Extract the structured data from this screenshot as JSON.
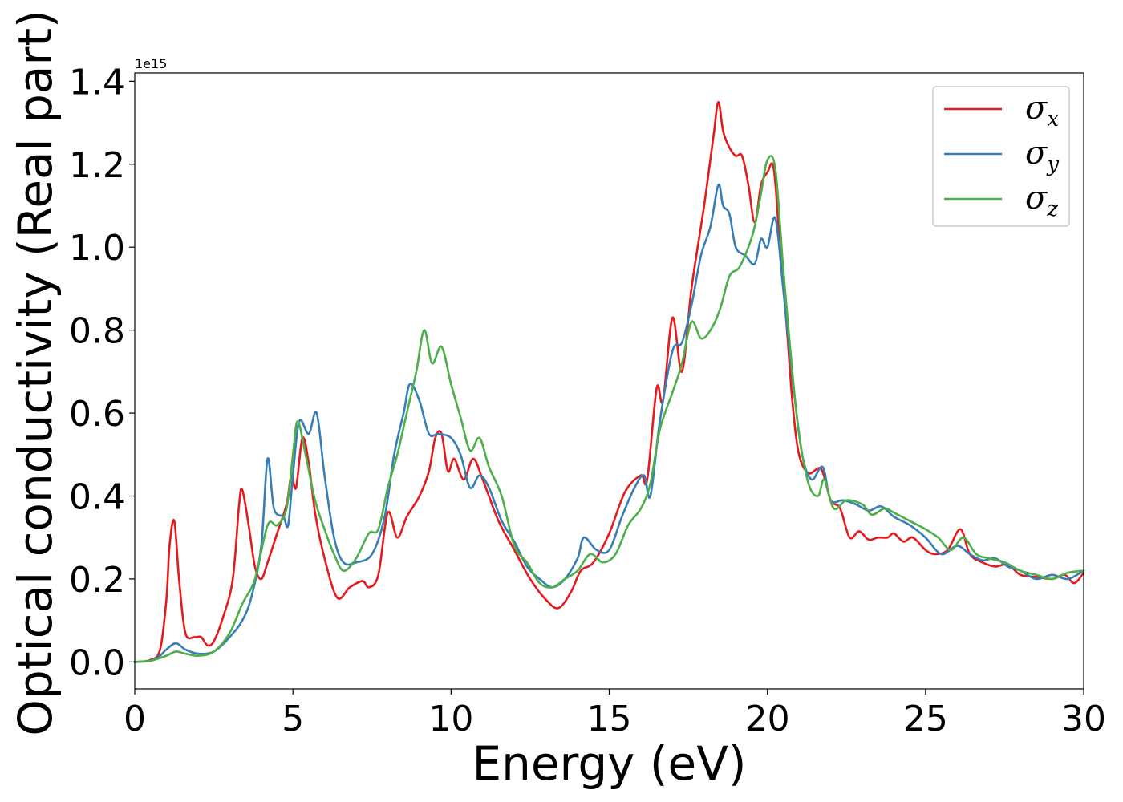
{
  "chart_data": {
    "type": "line",
    "xlabel": "Energy (eV)",
    "ylabel": "Optical conductivity (Real part)",
    "y_offset_text": "1e15",
    "xlim": [
      0,
      30
    ],
    "ylim": [
      -0.065,
      1.42
    ],
    "xticks": [
      0,
      5,
      10,
      15,
      20,
      25,
      30
    ],
    "yticks": [
      0.0,
      0.2,
      0.4,
      0.6,
      0.8,
      1.0,
      1.2,
      1.4
    ],
    "xtick_labels": [
      "0",
      "5",
      "10",
      "15",
      "20",
      "25",
      "30"
    ],
    "ytick_labels": [
      "0.0",
      "0.2",
      "0.4",
      "0.6",
      "0.8",
      "1.0",
      "1.2",
      "1.4"
    ],
    "grid": false,
    "legend_position": "top-right",
    "series": [
      {
        "name": "σx",
        "symbol": "σ",
        "subscript": "x",
        "color": "#e41a1c",
        "points": [
          [
            0,
            0
          ],
          [
            0.5,
            0.005
          ],
          [
            0.8,
            0.03
          ],
          [
            1.0,
            0.15
          ],
          [
            1.1,
            0.28
          ],
          [
            1.25,
            0.34
          ],
          [
            1.4,
            0.2
          ],
          [
            1.6,
            0.07
          ],
          [
            1.9,
            0.06
          ],
          [
            2.1,
            0.06
          ],
          [
            2.3,
            0.04
          ],
          [
            2.5,
            0.05
          ],
          [
            2.8,
            0.11
          ],
          [
            3.1,
            0.2
          ],
          [
            3.3,
            0.38
          ],
          [
            3.4,
            0.415
          ],
          [
            3.6,
            0.33
          ],
          [
            3.8,
            0.23
          ],
          [
            4.0,
            0.2
          ],
          [
            4.2,
            0.24
          ],
          [
            4.5,
            0.31
          ],
          [
            4.8,
            0.38
          ],
          [
            4.95,
            0.45
          ],
          [
            5.1,
            0.42
          ],
          [
            5.3,
            0.54
          ],
          [
            5.5,
            0.48
          ],
          [
            5.7,
            0.36
          ],
          [
            6.0,
            0.25
          ],
          [
            6.4,
            0.155
          ],
          [
            6.8,
            0.18
          ],
          [
            7.2,
            0.195
          ],
          [
            7.4,
            0.18
          ],
          [
            7.7,
            0.21
          ],
          [
            8.0,
            0.36
          ],
          [
            8.3,
            0.3
          ],
          [
            8.6,
            0.35
          ],
          [
            9.0,
            0.4
          ],
          [
            9.3,
            0.46
          ],
          [
            9.5,
            0.54
          ],
          [
            9.7,
            0.55
          ],
          [
            9.9,
            0.46
          ],
          [
            10.1,
            0.49
          ],
          [
            10.4,
            0.44
          ],
          [
            10.7,
            0.49
          ],
          [
            11.0,
            0.44
          ],
          [
            11.5,
            0.34
          ],
          [
            12.0,
            0.27
          ],
          [
            12.5,
            0.2
          ],
          [
            13.0,
            0.15
          ],
          [
            13.4,
            0.13
          ],
          [
            13.8,
            0.17
          ],
          [
            14.1,
            0.22
          ],
          [
            14.5,
            0.24
          ],
          [
            15.0,
            0.31
          ],
          [
            15.5,
            0.41
          ],
          [
            16.0,
            0.45
          ],
          [
            16.2,
            0.44
          ],
          [
            16.5,
            0.66
          ],
          [
            16.7,
            0.63
          ],
          [
            17.0,
            0.83
          ],
          [
            17.3,
            0.7
          ],
          [
            17.6,
            0.9
          ],
          [
            18.0,
            1.1
          ],
          [
            18.3,
            1.27
          ],
          [
            18.45,
            1.35
          ],
          [
            18.6,
            1.28
          ],
          [
            18.8,
            1.24
          ],
          [
            19.0,
            1.22
          ],
          [
            19.2,
            1.22
          ],
          [
            19.4,
            1.15
          ],
          [
            19.6,
            1.06
          ],
          [
            19.8,
            1.15
          ],
          [
            20.0,
            1.18
          ],
          [
            20.2,
            1.19
          ],
          [
            20.4,
            1.0
          ],
          [
            20.6,
            0.82
          ],
          [
            20.8,
            0.62
          ],
          [
            21.0,
            0.5
          ],
          [
            21.3,
            0.455
          ],
          [
            21.7,
            0.465
          ],
          [
            22.0,
            0.39
          ],
          [
            22.3,
            0.37
          ],
          [
            22.6,
            0.3
          ],
          [
            22.9,
            0.315
          ],
          [
            23.2,
            0.295
          ],
          [
            23.5,
            0.3
          ],
          [
            23.8,
            0.3
          ],
          [
            24.0,
            0.31
          ],
          [
            24.3,
            0.29
          ],
          [
            24.6,
            0.3
          ],
          [
            25.0,
            0.27
          ],
          [
            25.3,
            0.26
          ],
          [
            25.7,
            0.27
          ],
          [
            26.1,
            0.32
          ],
          [
            26.4,
            0.26
          ],
          [
            26.8,
            0.24
          ],
          [
            27.2,
            0.23
          ],
          [
            27.6,
            0.235
          ],
          [
            28.0,
            0.21
          ],
          [
            28.5,
            0.205
          ],
          [
            29.0,
            0.2
          ],
          [
            29.4,
            0.21
          ],
          [
            29.7,
            0.19
          ],
          [
            30.0,
            0.215
          ]
        ]
      },
      {
        "name": "σy",
        "symbol": "σ",
        "subscript": "y",
        "color": "#377eb8",
        "points": [
          [
            0,
            0
          ],
          [
            0.5,
            0.003
          ],
          [
            0.8,
            0.015
          ],
          [
            1.0,
            0.03
          ],
          [
            1.3,
            0.045
          ],
          [
            1.6,
            0.03
          ],
          [
            2.0,
            0.02
          ],
          [
            2.5,
            0.025
          ],
          [
            3.0,
            0.06
          ],
          [
            3.4,
            0.1
          ],
          [
            3.7,
            0.16
          ],
          [
            4.0,
            0.28
          ],
          [
            4.2,
            0.49
          ],
          [
            4.4,
            0.37
          ],
          [
            4.7,
            0.35
          ],
          [
            4.85,
            0.33
          ],
          [
            5.0,
            0.45
          ],
          [
            5.2,
            0.58
          ],
          [
            5.5,
            0.55
          ],
          [
            5.75,
            0.6
          ],
          [
            6.0,
            0.45
          ],
          [
            6.3,
            0.3
          ],
          [
            6.6,
            0.24
          ],
          [
            7.0,
            0.24
          ],
          [
            7.5,
            0.26
          ],
          [
            7.9,
            0.35
          ],
          [
            8.2,
            0.5
          ],
          [
            8.5,
            0.6
          ],
          [
            8.7,
            0.67
          ],
          [
            9.0,
            0.63
          ],
          [
            9.3,
            0.55
          ],
          [
            9.6,
            0.55
          ],
          [
            10.0,
            0.54
          ],
          [
            10.3,
            0.5
          ],
          [
            10.6,
            0.42
          ],
          [
            10.9,
            0.45
          ],
          [
            11.2,
            0.42
          ],
          [
            11.6,
            0.34
          ],
          [
            12.0,
            0.29
          ],
          [
            12.4,
            0.23
          ],
          [
            12.8,
            0.2
          ],
          [
            13.2,
            0.18
          ],
          [
            13.6,
            0.2
          ],
          [
            14.0,
            0.25
          ],
          [
            14.2,
            0.3
          ],
          [
            14.6,
            0.27
          ],
          [
            15.0,
            0.27
          ],
          [
            15.4,
            0.35
          ],
          [
            15.8,
            0.42
          ],
          [
            16.1,
            0.45
          ],
          [
            16.3,
            0.4
          ],
          [
            16.6,
            0.58
          ],
          [
            17.0,
            0.75
          ],
          [
            17.3,
            0.77
          ],
          [
            17.6,
            0.86
          ],
          [
            17.9,
            0.98
          ],
          [
            18.2,
            1.05
          ],
          [
            18.45,
            1.15
          ],
          [
            18.6,
            1.1
          ],
          [
            18.8,
            1.08
          ],
          [
            19.0,
            1.0
          ],
          [
            19.3,
            0.98
          ],
          [
            19.6,
            0.96
          ],
          [
            19.8,
            1.02
          ],
          [
            20.0,
            1.0
          ],
          [
            20.25,
            1.07
          ],
          [
            20.5,
            0.9
          ],
          [
            20.8,
            0.68
          ],
          [
            21.1,
            0.5
          ],
          [
            21.4,
            0.44
          ],
          [
            21.75,
            0.47
          ],
          [
            22.0,
            0.39
          ],
          [
            22.4,
            0.39
          ],
          [
            22.8,
            0.38
          ],
          [
            23.2,
            0.365
          ],
          [
            23.6,
            0.375
          ],
          [
            24.0,
            0.35
          ],
          [
            24.5,
            0.33
          ],
          [
            25.0,
            0.3
          ],
          [
            25.5,
            0.26
          ],
          [
            26.0,
            0.28
          ],
          [
            26.4,
            0.26
          ],
          [
            26.8,
            0.245
          ],
          [
            27.2,
            0.25
          ],
          [
            27.6,
            0.23
          ],
          [
            28.0,
            0.22
          ],
          [
            28.5,
            0.2
          ],
          [
            29.0,
            0.21
          ],
          [
            29.5,
            0.2
          ],
          [
            30.0,
            0.22
          ]
        ]
      },
      {
        "name": "σz",
        "symbol": "σ",
        "subscript": "z",
        "color": "#4daf4a",
        "points": [
          [
            0,
            0
          ],
          [
            0.5,
            0.003
          ],
          [
            1.0,
            0.015
          ],
          [
            1.3,
            0.025
          ],
          [
            1.6,
            0.02
          ],
          [
            2.0,
            0.015
          ],
          [
            2.5,
            0.025
          ],
          [
            3.0,
            0.07
          ],
          [
            3.4,
            0.14
          ],
          [
            3.8,
            0.2
          ],
          [
            4.2,
            0.33
          ],
          [
            4.5,
            0.33
          ],
          [
            4.8,
            0.37
          ],
          [
            5.0,
            0.5
          ],
          [
            5.15,
            0.58
          ],
          [
            5.4,
            0.5
          ],
          [
            5.7,
            0.39
          ],
          [
            6.0,
            0.32
          ],
          [
            6.3,
            0.26
          ],
          [
            6.6,
            0.22
          ],
          [
            7.0,
            0.25
          ],
          [
            7.4,
            0.31
          ],
          [
            7.7,
            0.32
          ],
          [
            8.0,
            0.42
          ],
          [
            8.3,
            0.5
          ],
          [
            8.6,
            0.6
          ],
          [
            8.9,
            0.7
          ],
          [
            9.15,
            0.8
          ],
          [
            9.4,
            0.72
          ],
          [
            9.7,
            0.76
          ],
          [
            10.0,
            0.67
          ],
          [
            10.3,
            0.59
          ],
          [
            10.6,
            0.51
          ],
          [
            10.9,
            0.54
          ],
          [
            11.2,
            0.47
          ],
          [
            11.6,
            0.4
          ],
          [
            12.0,
            0.28
          ],
          [
            12.4,
            0.24
          ],
          [
            12.8,
            0.19
          ],
          [
            13.2,
            0.18
          ],
          [
            13.6,
            0.2
          ],
          [
            14.0,
            0.22
          ],
          [
            14.4,
            0.26
          ],
          [
            14.8,
            0.24
          ],
          [
            15.2,
            0.26
          ],
          [
            15.6,
            0.33
          ],
          [
            16.0,
            0.37
          ],
          [
            16.3,
            0.43
          ],
          [
            16.6,
            0.56
          ],
          [
            17.0,
            0.65
          ],
          [
            17.3,
            0.72
          ],
          [
            17.6,
            0.82
          ],
          [
            17.9,
            0.78
          ],
          [
            18.2,
            0.8
          ],
          [
            18.5,
            0.85
          ],
          [
            18.8,
            0.93
          ],
          [
            19.1,
            0.95
          ],
          [
            19.4,
            1.0
          ],
          [
            19.6,
            1.05
          ],
          [
            19.8,
            1.13
          ],
          [
            20.0,
            1.21
          ],
          [
            20.25,
            1.19
          ],
          [
            20.5,
            0.95
          ],
          [
            20.8,
            0.69
          ],
          [
            21.0,
            0.55
          ],
          [
            21.3,
            0.43
          ],
          [
            21.6,
            0.4
          ],
          [
            21.8,
            0.44
          ],
          [
            22.1,
            0.37
          ],
          [
            22.5,
            0.39
          ],
          [
            23.0,
            0.38
          ],
          [
            23.3,
            0.355
          ],
          [
            23.7,
            0.37
          ],
          [
            24.0,
            0.36
          ],
          [
            24.5,
            0.34
          ],
          [
            25.0,
            0.32
          ],
          [
            25.4,
            0.3
          ],
          [
            25.8,
            0.27
          ],
          [
            26.2,
            0.3
          ],
          [
            26.6,
            0.26
          ],
          [
            27.0,
            0.25
          ],
          [
            27.5,
            0.24
          ],
          [
            28.0,
            0.22
          ],
          [
            28.5,
            0.21
          ],
          [
            29.0,
            0.2
          ],
          [
            29.5,
            0.215
          ],
          [
            30.0,
            0.22
          ]
        ]
      }
    ]
  }
}
